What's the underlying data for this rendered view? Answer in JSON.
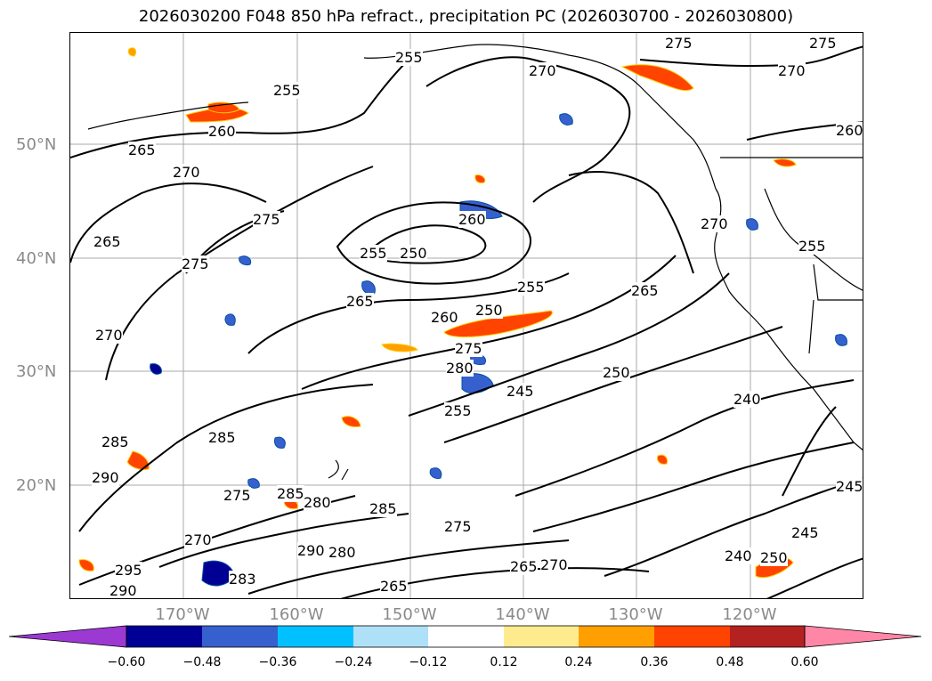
{
  "title": "2026030200 F048 850 hPa refract., precipitation PC (2026030700 - 2026030800)",
  "lat_labels": [
    "50°N",
    "40°N",
    "30°N",
    "20°N"
  ],
  "lon_labels": [
    "170°W",
    "160°W",
    "150°W",
    "140°W",
    "130°W",
    "120°W"
  ],
  "contour_labels": [
    "255",
    "275",
    "270",
    "270",
    "275",
    "255",
    "260",
    "265",
    "270",
    "275",
    "265",
    "275",
    "270",
    "260",
    "255",
    "250",
    "265",
    "255",
    "265",
    "260",
    "250",
    "275",
    "280",
    "245",
    "255",
    "250",
    "240",
    "285",
    "285",
    "290",
    "275",
    "285",
    "280",
    "275",
    "285",
    "290",
    "280",
    "270",
    "265",
    "295",
    "290",
    "283",
    "265",
    "270",
    "240",
    "250",
    "245",
    "245",
    "270",
    "260",
    "255"
  ],
  "colorbar": {
    "ticks": [
      "−0.60",
      "−0.48",
      "−0.36",
      "−0.24",
      "−0.12",
      "0.12",
      "0.24",
      "0.36",
      "0.48",
      "0.60"
    ],
    "colors": [
      "#9c39d2",
      "#000094",
      "#3760cf",
      "#00c0ff",
      "#aee1f8",
      "#ffffff",
      "#feeb8e",
      "#ff9f00",
      "#ff4300",
      "#b42121",
      "#ff86a6"
    ]
  },
  "colors": {
    "coast": "#000000",
    "grid": "#a9a9a9",
    "contour": "#000000"
  }
}
